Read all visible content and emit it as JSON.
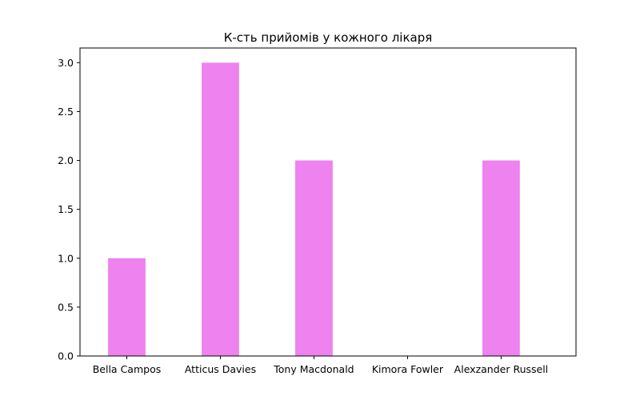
{
  "chart_data": {
    "type": "bar",
    "title": "К-сть прийомів у кожного лікаря",
    "xlabel": "",
    "ylabel": "",
    "categories": [
      "Bella Campos",
      "Atticus Davies",
      "Tony Macdonald",
      "Kimora Fowler",
      "Alexzander Russell"
    ],
    "values": [
      1,
      3,
      2,
      0,
      2
    ],
    "ylim": [
      0,
      3.15
    ],
    "yticks": [
      "0.0",
      "0.5",
      "1.0",
      "1.5",
      "2.0",
      "2.5",
      "3.0"
    ],
    "grid": false,
    "legend": "none",
    "bar_color": "#ee82ee"
  }
}
